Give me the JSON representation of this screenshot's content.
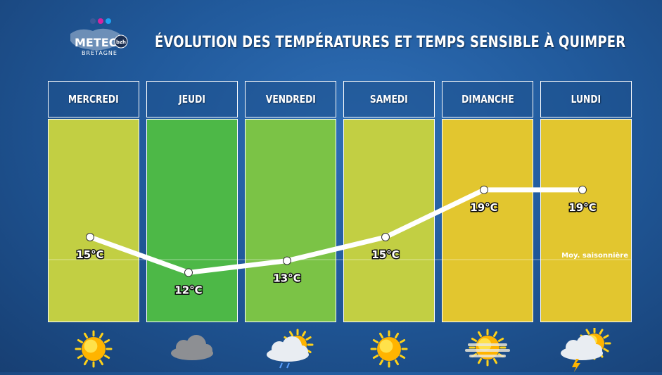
{
  "header": {
    "title": "ÉVOLUTION DES TEMPÉRATURES ET TEMPS SENSIBLE À QUIMPER",
    "logo": {
      "text": "METEO",
      "badge": "bzh",
      "sub": "BRETAGNE"
    }
  },
  "days": [
    {
      "label": "MERCREDI",
      "color": "#c2cf43",
      "weather_icon": "sun-icon"
    },
    {
      "label": "JEUDI",
      "color": "#4db847",
      "weather_icon": "cloud-icon"
    },
    {
      "label": "VENDREDI",
      "color": "#7bc346",
      "weather_icon": "sun-cloud-rain-icon"
    },
    {
      "label": "SAMEDI",
      "color": "#c2cf43",
      "weather_icon": "sun-icon"
    },
    {
      "label": "DIMANCHE",
      "color": "#e2c62f",
      "weather_icon": "hazy-sun-icon"
    },
    {
      "label": "LUNDI",
      "color": "#e2c62f",
      "weather_icon": "sun-storm-icon"
    }
  ],
  "chart_data": {
    "type": "line",
    "categories": [
      "MERCREDI",
      "JEUDI",
      "VENDREDI",
      "SAMEDI",
      "DIMANCHE",
      "LUNDI"
    ],
    "values": [
      15,
      12,
      13,
      15,
      19,
      19
    ],
    "point_labels": [
      "15°C",
      "12°C",
      "13°C",
      "15°C",
      "19°C",
      "19°C"
    ],
    "seasonal_average": {
      "value": 13.1,
      "label": "Moy. saisonnière"
    },
    "line_color": "#ffffff"
  }
}
